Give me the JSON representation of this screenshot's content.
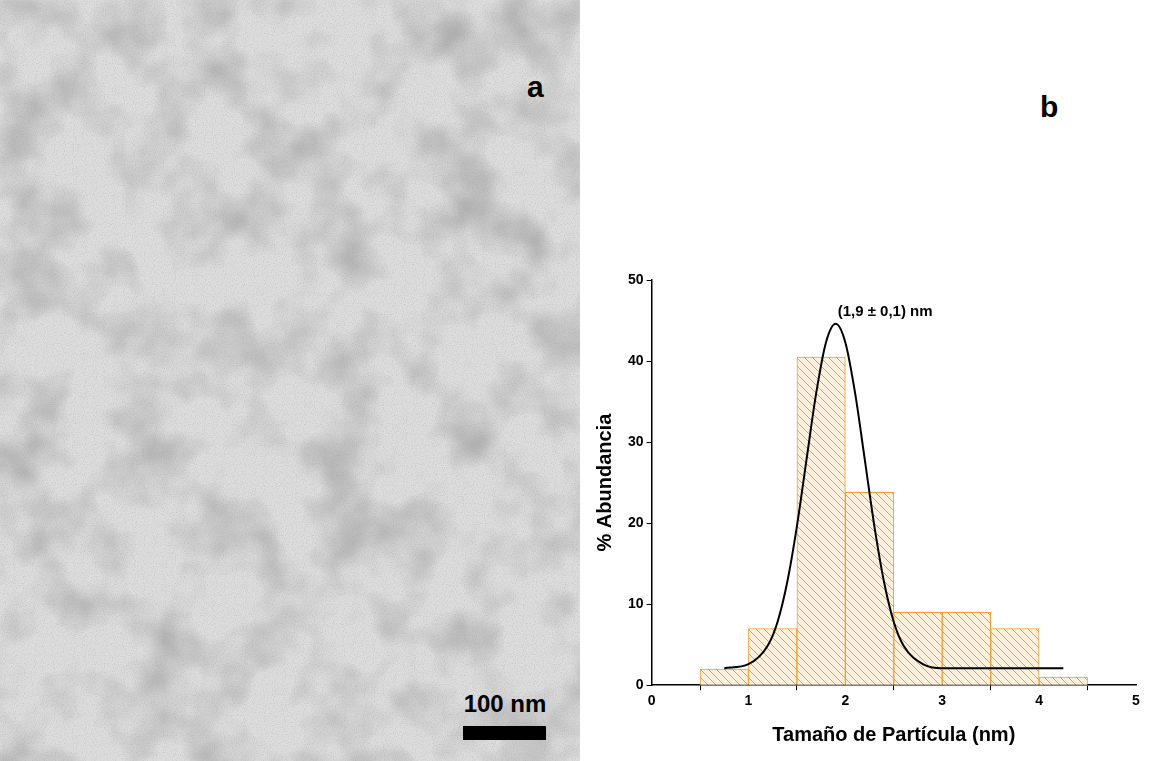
{
  "micrograph": {
    "panel": "a",
    "scale_bar": "100 nm"
  },
  "chart_data": {
    "panel": "b",
    "type": "histogram",
    "x_label": "Tamaño de Partícula (nm)",
    "y_label": "% Abundancia",
    "bins": [
      0.5,
      1.0,
      1.5,
      2.0,
      2.5,
      3.0,
      3.5,
      4.0,
      4.5
    ],
    "values": [
      2,
      7,
      40.5,
      23.8,
      9,
      9,
      7,
      1
    ],
    "color": "#f0a030",
    "fit": {
      "type": "line",
      "color": "#000000",
      "x": [
        0.75,
        1.0,
        1.2,
        1.3,
        1.4,
        1.5,
        1.6,
        1.7,
        1.8,
        1.9,
        2.0,
        2.1,
        2.2,
        2.3,
        2.4,
        2.5,
        2.6,
        2.8,
        3.0,
        3.5,
        4.0,
        4.25
      ],
      "values": [
        2.1,
        2.6,
        4.9,
        7.8,
        12.7,
        19.6,
        27.9,
        36.1,
        42.3,
        44.6,
        42.3,
        36.1,
        27.9,
        19.6,
        12.7,
        7.8,
        4.9,
        2.6,
        2.1,
        2.1,
        2.1,
        2.1
      ]
    },
    "annotations": [
      {
        "text": "(1,9 ± 0,1) nm"
      }
    ],
    "xlim": [
      0,
      5
    ],
    "xticks": [
      0,
      1,
      2,
      3,
      4,
      5
    ],
    "ylim": [
      0,
      50
    ],
    "yticks": [
      0,
      10,
      20,
      30,
      40,
      50
    ],
    "grid": false
  }
}
